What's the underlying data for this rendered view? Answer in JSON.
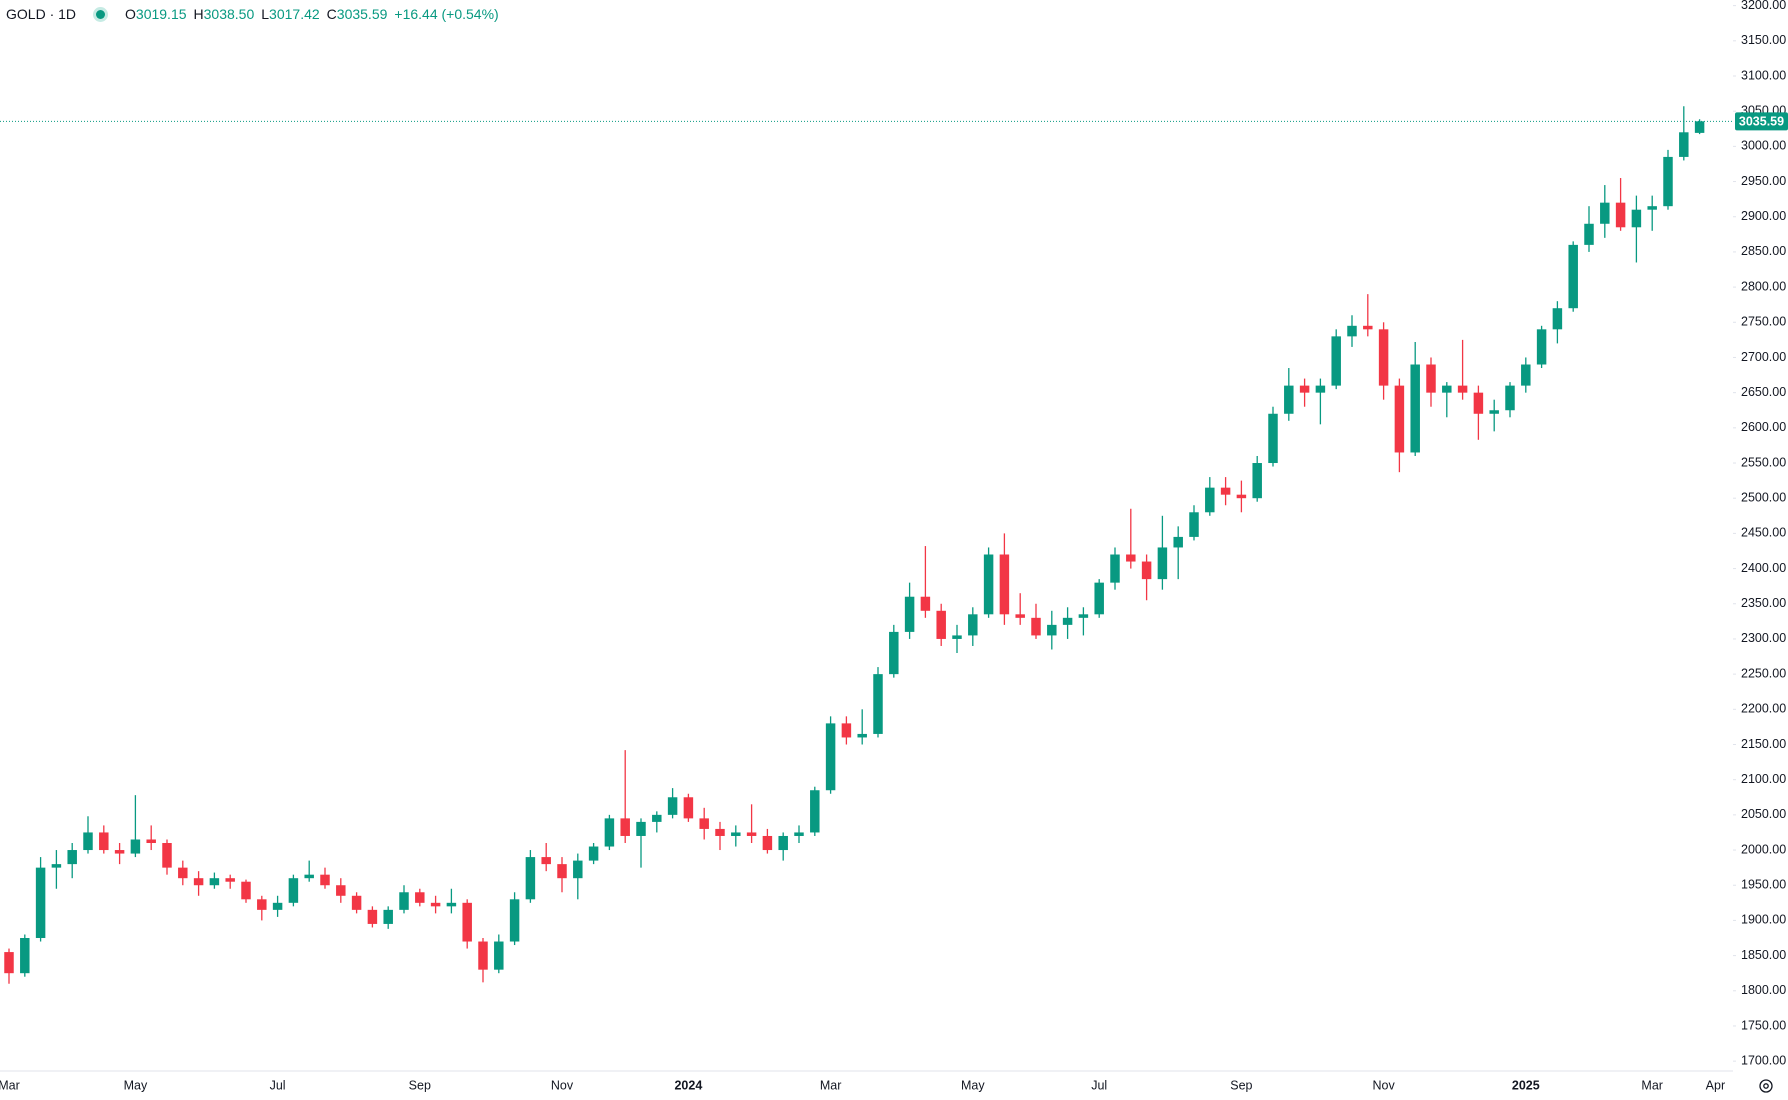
{
  "chart_data": {
    "type": "candlestick",
    "legend": {
      "symbol": "GOLD · 1D",
      "items": [
        {
          "label": "O",
          "value": "3019.15"
        },
        {
          "label": "H",
          "value": "3038.50"
        },
        {
          "label": "L",
          "value": "3017.42"
        },
        {
          "label": "C",
          "value": "3035.59"
        }
      ],
      "change": "+16.44 (+0.54%)"
    },
    "up_color": "#089981",
    "down_color": "#f23645",
    "categories": [
      "Mar",
      null,
      null,
      null,
      null,
      null,
      null,
      null,
      "May",
      null,
      null,
      null,
      null,
      null,
      null,
      null,
      null,
      "Jul",
      null,
      null,
      null,
      null,
      null,
      null,
      null,
      null,
      "Sep",
      null,
      null,
      null,
      null,
      null,
      null,
      null,
      null,
      "Nov",
      null,
      null,
      null,
      null,
      null,
      null,
      null,
      "2024",
      null,
      null,
      null,
      null,
      null,
      null,
      null,
      null,
      "Mar",
      null,
      null,
      null,
      null,
      null,
      null,
      null,
      null,
      "May",
      null,
      null,
      null,
      null,
      null,
      null,
      null,
      "Jul",
      null,
      null,
      null,
      null,
      null,
      null,
      null,
      null,
      "Sep",
      null,
      null,
      null,
      null,
      null,
      null,
      null,
      null,
      "Nov",
      null,
      null,
      null,
      null,
      null,
      null,
      null,
      null,
      "2025",
      null,
      null,
      null,
      null,
      null,
      null,
      null,
      "Mar",
      null,
      null,
      null,
      "Apr"
    ],
    "bold_categories": [
      "2024",
      "2025"
    ],
    "open": [
      1855,
      1825,
      1875,
      1975,
      1980,
      2000,
      2025,
      2000,
      1995,
      2015,
      2010,
      1975,
      1960,
      1950,
      1960,
      1955,
      1930,
      1915,
      1925,
      1960,
      1965,
      1950,
      1935,
      1915,
      1895,
      1915,
      1940,
      1925,
      1920,
      1925,
      1870,
      1830,
      1870,
      1930,
      1990,
      1980,
      1960,
      1985,
      2005,
      2045,
      2020,
      2040,
      2050,
      2075,
      2045,
      2030,
      2020,
      2025,
      2020,
      2000,
      2020,
      2025,
      2085,
      2180,
      2160,
      2165,
      2250,
      2310,
      2360,
      2340,
      2300,
      2305,
      2335,
      2420,
      2335,
      2330,
      2305,
      2320,
      2330,
      2335,
      2380,
      2420,
      2410,
      2385,
      2430,
      2445,
      2480,
      2515,
      2505,
      2500,
      2550,
      2620,
      2660,
      2650,
      2660,
      2730,
      2745,
      2740,
      2660,
      2565,
      2690,
      2650,
      2660,
      2650,
      2620,
      2625,
      2660,
      2690,
      2740,
      2770,
      2860,
      2890,
      2920,
      2885,
      2910,
      2915,
      2985,
      3019.15,
      null
    ],
    "high": [
      1860,
      1880,
      1990,
      2000,
      2010,
      2048,
      2035,
      2010,
      2078,
      2035,
      2015,
      1985,
      1970,
      1968,
      1965,
      1958,
      1935,
      1935,
      1965,
      1985,
      1975,
      1960,
      1940,
      1920,
      1920,
      1950,
      1945,
      1935,
      1945,
      1930,
      1875,
      1880,
      1940,
      2000,
      2010,
      1990,
      1995,
      2010,
      2050,
      2142,
      2045,
      2055,
      2088,
      2080,
      2060,
      2040,
      2035,
      2065,
      2030,
      2025,
      2035,
      2090,
      2190,
      2190,
      2200,
      2260,
      2320,
      2380,
      2432,
      2350,
      2320,
      2345,
      2430,
      2450,
      2365,
      2350,
      2340,
      2345,
      2345,
      2385,
      2430,
      2485,
      2420,
      2475,
      2460,
      2490,
      2530,
      2530,
      2525,
      2560,
      2630,
      2685,
      2670,
      2670,
      2740,
      2760,
      2790,
      2750,
      2670,
      2722,
      2700,
      2665,
      2725,
      2660,
      2640,
      2665,
      2700,
      2745,
      2780,
      2865,
      2915,
      2945,
      2955,
      2930,
      2930,
      2995,
      3057,
      3038.5,
      null
    ],
    "low": [
      1810,
      1820,
      1870,
      1945,
      1960,
      1995,
      1995,
      1980,
      1990,
      2000,
      1965,
      1950,
      1935,
      1945,
      1945,
      1925,
      1900,
      1905,
      1920,
      1955,
      1945,
      1925,
      1910,
      1890,
      1888,
      1910,
      1920,
      1910,
      1910,
      1860,
      1812,
      1825,
      1865,
      1925,
      1970,
      1940,
      1930,
      1980,
      2000,
      2010,
      1975,
      2025,
      2045,
      2040,
      2015,
      2000,
      2005,
      2010,
      1995,
      1985,
      2010,
      2020,
      2080,
      2150,
      2150,
      2160,
      2245,
      2300,
      2330,
      2290,
      2280,
      2290,
      2330,
      2320,
      2320,
      2300,
      2285,
      2300,
      2305,
      2330,
      2370,
      2400,
      2355,
      2370,
      2385,
      2440,
      2475,
      2490,
      2480,
      2495,
      2545,
      2610,
      2630,
      2605,
      2655,
      2715,
      2730,
      2640,
      2537,
      2560,
      2630,
      2615,
      2640,
      2583,
      2595,
      2615,
      2650,
      2685,
      2720,
      2765,
      2850,
      2870,
      2880,
      2835,
      2880,
      2910,
      2980,
      3017.42,
      null
    ],
    "close": [
      1825,
      1875,
      1975,
      1980,
      2000,
      2025,
      2000,
      1995,
      2015,
      2010,
      1975,
      1960,
      1950,
      1960,
      1955,
      1930,
      1915,
      1925,
      1960,
      1965,
      1950,
      1935,
      1915,
      1895,
      1915,
      1940,
      1925,
      1920,
      1925,
      1870,
      1830,
      1870,
      1930,
      1990,
      1980,
      1960,
      1985,
      2005,
      2045,
      2020,
      2040,
      2050,
      2075,
      2045,
      2030,
      2020,
      2025,
      2020,
      2000,
      2020,
      2025,
      2085,
      2180,
      2160,
      2165,
      2250,
      2310,
      2360,
      2340,
      2300,
      2305,
      2335,
      2420,
      2335,
      2330,
      2305,
      2320,
      2330,
      2335,
      2380,
      2420,
      2410,
      2385,
      2430,
      2445,
      2480,
      2515,
      2505,
      2500,
      2550,
      2620,
      2660,
      2650,
      2660,
      2730,
      2745,
      2740,
      2660,
      2565,
      2690,
      2650,
      2660,
      2650,
      2620,
      2625,
      2660,
      2690,
      2740,
      2770,
      2860,
      2890,
      2920,
      2885,
      2910,
      2915,
      2985,
      3020,
      3035.59,
      null
    ],
    "last_price": {
      "value": 3035.59,
      "label": "3035.59"
    },
    "ylim": [
      1686,
      3208
    ],
    "yticks": [
      {
        "value": 1700,
        "label": "1700.00"
      },
      {
        "value": 1750,
        "label": "1750.00"
      },
      {
        "value": 1800,
        "label": "1800.00"
      },
      {
        "value": 1850,
        "label": "1850.00"
      },
      {
        "value": 1900,
        "label": "1900.00"
      },
      {
        "value": 1950,
        "label": "1950.00"
      },
      {
        "value": 2000,
        "label": "2000.00"
      },
      {
        "value": 2050,
        "label": "2050.00"
      },
      {
        "value": 2100,
        "label": "2100.00"
      },
      {
        "value": 2150,
        "label": "2150.00"
      },
      {
        "value": 2200,
        "label": "2200.00"
      },
      {
        "value": 2250,
        "label": "2250.00"
      },
      {
        "value": 2300,
        "label": "2300.00"
      },
      {
        "value": 2350,
        "label": "2350.00"
      },
      {
        "value": 2400,
        "label": "2400.00"
      },
      {
        "value": 2450,
        "label": "2450.00"
      },
      {
        "value": 2500,
        "label": "2500.00"
      },
      {
        "value": 2550,
        "label": "2550.00"
      },
      {
        "value": 2600,
        "label": "2600.00"
      },
      {
        "value": 2650,
        "label": "2650.00"
      },
      {
        "value": 2700,
        "label": "2700.00"
      },
      {
        "value": 2750,
        "label": "2750.00"
      },
      {
        "value": 2800,
        "label": "2800.00"
      },
      {
        "value": 2850,
        "label": "2850.00"
      },
      {
        "value": 2900,
        "label": "2900.00"
      },
      {
        "value": 2950,
        "label": "2950.00"
      },
      {
        "value": 3000,
        "label": "3000.00"
      },
      {
        "value": 3050,
        "label": "3050.00"
      },
      {
        "value": 3100,
        "label": "3100.00"
      },
      {
        "value": 3150,
        "label": "3150.00"
      },
      {
        "value": 3200,
        "label": "3200.00"
      }
    ],
    "grid": false
  }
}
